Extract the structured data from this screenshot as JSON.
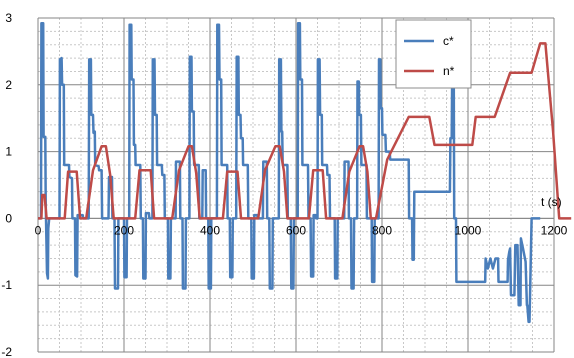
{
  "chart_data": {
    "type": "line",
    "xlabel": "t (s)",
    "ylabel": "",
    "xlim": [
      0,
      1200
    ],
    "ylim": [
      -2,
      3
    ],
    "x_ticks": [
      "0",
      "200",
      "400",
      "600",
      "800",
      "1000",
      "1200"
    ],
    "y_ticks": [
      "3",
      "2",
      "1",
      "0",
      "-1",
      "-2"
    ],
    "grid": true,
    "legend_position": "top-right",
    "series": [
      {
        "name": "c*",
        "color": "#4a7ebb",
        "points": [
          [
            0,
            0
          ],
          [
            7,
            0
          ],
          [
            8,
            2.92
          ],
          [
            12,
            2.92
          ],
          [
            13,
            1.22
          ],
          [
            17,
            1.22
          ],
          [
            18,
            0.25
          ],
          [
            21,
            -0.82
          ],
          [
            23,
            -0.9
          ],
          [
            24,
            -0.15
          ],
          [
            26,
            0
          ],
          [
            44,
            0
          ],
          [
            50,
            0
          ],
          [
            51,
            2.38
          ],
          [
            55,
            2.4
          ],
          [
            56,
            2.0
          ],
          [
            60,
            2.0
          ],
          [
            61,
            0.8
          ],
          [
            72,
            0.8
          ],
          [
            73,
            0.62
          ],
          [
            79,
            0.6
          ],
          [
            80,
            0
          ],
          [
            86,
            0
          ],
          [
            87,
            -0.85
          ],
          [
            91,
            -0.87
          ],
          [
            92,
            0.05
          ],
          [
            104,
            0.05
          ],
          [
            105,
            0
          ],
          [
            118,
            0
          ],
          [
            119,
            2.38
          ],
          [
            123,
            2.38
          ],
          [
            124,
            1.55
          ],
          [
            128,
            1.55
          ],
          [
            129,
            1.28
          ],
          [
            132,
            1.3
          ],
          [
            133,
            0.8
          ],
          [
            141,
            0.78
          ],
          [
            142,
            0.72
          ],
          [
            148,
            0.72
          ],
          [
            149,
            0
          ],
          [
            164,
            0
          ],
          [
            165,
            0.62
          ],
          [
            172,
            0.62
          ],
          [
            173,
            0
          ],
          [
            178,
            0
          ],
          [
            179,
            -1.05
          ],
          [
            186,
            -1.05
          ],
          [
            187,
            0
          ],
          [
            200,
            0
          ],
          [
            201,
            -0.88
          ],
          [
            206,
            -0.88
          ],
          [
            207,
            0
          ],
          [
            212,
            0
          ],
          [
            213,
            2.9
          ],
          [
            217,
            2.9
          ],
          [
            218,
            2.08
          ],
          [
            222,
            2.08
          ],
          [
            223,
            1.1
          ],
          [
            226,
            1.1
          ],
          [
            227,
            0.8
          ],
          [
            238,
            0.8
          ],
          [
            239,
            0
          ],
          [
            244,
            0
          ],
          [
            245,
            -0.9
          ],
          [
            250,
            -0.9
          ],
          [
            251,
            0.08
          ],
          [
            258,
            0.08
          ],
          [
            259,
            0
          ],
          [
            266,
            0
          ],
          [
            267,
            2.38
          ],
          [
            271,
            2.38
          ],
          [
            272,
            1.55
          ],
          [
            276,
            1.55
          ],
          [
            277,
            0.8
          ],
          [
            288,
            0.8
          ],
          [
            289,
            0.65
          ],
          [
            294,
            0.65
          ],
          [
            295,
            0
          ],
          [
            302,
            0
          ],
          [
            303,
            -0.9
          ],
          [
            308,
            -0.9
          ],
          [
            309,
            0
          ],
          [
            320,
            0
          ],
          [
            321,
            0.85
          ],
          [
            330,
            0.85
          ],
          [
            331,
            0
          ],
          [
            336,
            0
          ],
          [
            337,
            -1.05
          ],
          [
            343,
            -1.05
          ],
          [
            344,
            0
          ],
          [
            352,
            0
          ],
          [
            353,
            2.42
          ],
          [
            357,
            2.42
          ],
          [
            358,
            1.6
          ],
          [
            362,
            1.6
          ],
          [
            363,
            0.8
          ],
          [
            374,
            0.8
          ],
          [
            375,
            0
          ],
          [
            382,
            0
          ],
          [
            383,
            0.72
          ],
          [
            390,
            0.72
          ],
          [
            391,
            0
          ],
          [
            396,
            0
          ],
          [
            397,
            -1.05
          ],
          [
            402,
            -1.05
          ],
          [
            403,
            0
          ],
          [
            416,
            0
          ],
          [
            417,
            2.9
          ],
          [
            421,
            2.9
          ],
          [
            422,
            2.08
          ],
          [
            426,
            2.08
          ],
          [
            427,
            0.8
          ],
          [
            440,
            0.8
          ],
          [
            441,
            0
          ],
          [
            446,
            0
          ],
          [
            447,
            -0.88
          ],
          [
            452,
            -0.88
          ],
          [
            453,
            0
          ],
          [
            461,
            0
          ],
          [
            462,
            2.42
          ],
          [
            466,
            2.42
          ],
          [
            467,
            1.55
          ],
          [
            471,
            1.55
          ],
          [
            472,
            1.2
          ],
          [
            476,
            1.2
          ],
          [
            477,
            0.8
          ],
          [
            488,
            0.8
          ],
          [
            489,
            0
          ],
          [
            496,
            0
          ],
          [
            497,
            -0.9
          ],
          [
            502,
            -0.9
          ],
          [
            503,
            0.05
          ],
          [
            510,
            0.05
          ],
          [
            511,
            0
          ],
          [
            523,
            0
          ],
          [
            524,
            0.85
          ],
          [
            532,
            0.85
          ],
          [
            533,
            0
          ],
          [
            538,
            0
          ],
          [
            539,
            -1.05
          ],
          [
            545,
            -1.05
          ],
          [
            546,
            0
          ],
          [
            560,
            0
          ],
          [
            561,
            2.38
          ],
          [
            565,
            2.38
          ],
          [
            566,
            1.3
          ],
          [
            568,
            1.3
          ],
          [
            569,
            0.8
          ],
          [
            580,
            0.8
          ],
          [
            581,
            0
          ],
          [
            588,
            0
          ],
          [
            589,
            -1.05
          ],
          [
            594,
            -1.05
          ],
          [
            595,
            0
          ],
          [
            604,
            0
          ],
          [
            605,
            2.92
          ],
          [
            609,
            2.92
          ],
          [
            610,
            2.08
          ],
          [
            614,
            2.08
          ],
          [
            615,
            0.8
          ],
          [
            628,
            0.8
          ],
          [
            629,
            0
          ],
          [
            634,
            0
          ],
          [
            635,
            -0.87
          ],
          [
            640,
            -0.87
          ],
          [
            641,
            0.05
          ],
          [
            646,
            0.05
          ],
          [
            647,
            0
          ],
          [
            650,
            0
          ],
          [
            651,
            2.38
          ],
          [
            655,
            2.38
          ],
          [
            656,
            1.55
          ],
          [
            660,
            1.55
          ],
          [
            661,
            0.8
          ],
          [
            672,
            0.8
          ],
          [
            673,
            0.65
          ],
          [
            678,
            0.65
          ],
          [
            679,
            0
          ],
          [
            690,
            0
          ],
          [
            691,
            -0.9
          ],
          [
            696,
            -0.9
          ],
          [
            697,
            0
          ],
          [
            712,
            0
          ],
          [
            713,
            0.85
          ],
          [
            722,
            0.85
          ],
          [
            723,
            0
          ],
          [
            728,
            0
          ],
          [
            729,
            -1.05
          ],
          [
            734,
            -1.05
          ],
          [
            735,
            0
          ],
          [
            742,
            0
          ],
          [
            743,
            2.05
          ],
          [
            746,
            2.05
          ],
          [
            747,
            1.55
          ],
          [
            751,
            1.55
          ],
          [
            752,
            0.8
          ],
          [
            764,
            0.8
          ],
          [
            765,
            0
          ],
          [
            776,
            0
          ],
          [
            777,
            -0.95
          ],
          [
            782,
            -0.95
          ],
          [
            783,
            0
          ],
          [
            792,
            0
          ],
          [
            793,
            2.38
          ],
          [
            796,
            2.38
          ],
          [
            797,
            1.65
          ],
          [
            800,
            1.65
          ],
          [
            801,
            1.25
          ],
          [
            808,
            1.25
          ],
          [
            809,
            1.0
          ],
          [
            818,
            1.0
          ],
          [
            819,
            0.88
          ],
          [
            862,
            0.88
          ],
          [
            863,
            0
          ],
          [
            870,
            0
          ],
          [
            871,
            -0.62
          ],
          [
            874,
            -0.62
          ],
          [
            875,
            0.4
          ],
          [
            958,
            0.4
          ],
          [
            959,
            1.2
          ],
          [
            962,
            1.2
          ],
          [
            963,
            2.0
          ],
          [
            967,
            2.0
          ],
          [
            968,
            0
          ],
          [
            972,
            0
          ],
          [
            973,
            -0.95
          ],
          [
            1040,
            -0.95
          ],
          [
            1041,
            -0.6
          ],
          [
            1046,
            -0.75
          ],
          [
            1052,
            -0.6
          ],
          [
            1058,
            -0.75
          ],
          [
            1064,
            -0.6
          ],
          [
            1070,
            -0.6
          ],
          [
            1071,
            -0.95
          ],
          [
            1092,
            -0.95
          ],
          [
            1093,
            -0.62
          ],
          [
            1096,
            -0.5
          ],
          [
            1098,
            -0.45
          ],
          [
            1100,
            -1.15
          ],
          [
            1108,
            -1.15
          ],
          [
            1110,
            -0.4
          ],
          [
            1115,
            -0.4
          ],
          [
            1118,
            -1.3
          ],
          [
            1122,
            -1.3
          ],
          [
            1123,
            -0.3
          ],
          [
            1128,
            -0.45
          ],
          [
            1134,
            -0.65
          ],
          [
            1137,
            -1.3
          ],
          [
            1138,
            -1.3
          ],
          [
            1141,
            -1.55
          ],
          [
            1143,
            -1.55
          ],
          [
            1148,
            0
          ],
          [
            1168,
            0
          ]
        ]
      },
      {
        "name": "n*",
        "color": "#be4b48",
        "points": [
          [
            0,
            0
          ],
          [
            8,
            0
          ],
          [
            10,
            0.35
          ],
          [
            15,
            0.35
          ],
          [
            20,
            0
          ],
          [
            62,
            0
          ],
          [
            70,
            0.7
          ],
          [
            90,
            0.7
          ],
          [
            98,
            0
          ],
          [
            112,
            0
          ],
          [
            128,
            0.72
          ],
          [
            148,
            1.08
          ],
          [
            158,
            1.08
          ],
          [
            168,
            0.65
          ],
          [
            176,
            0
          ],
          [
            226,
            0
          ],
          [
            236,
            0.72
          ],
          [
            262,
            0.72
          ],
          [
            270,
            0
          ],
          [
            312,
            0
          ],
          [
            328,
            0.72
          ],
          [
            350,
            1.08
          ],
          [
            358,
            1.08
          ],
          [
            368,
            0.68
          ],
          [
            376,
            0
          ],
          [
            430,
            0
          ],
          [
            440,
            0.7
          ],
          [
            464,
            0.7
          ],
          [
            472,
            0
          ],
          [
            512,
            0
          ],
          [
            528,
            0.72
          ],
          [
            552,
            1.08
          ],
          [
            562,
            1.08
          ],
          [
            572,
            0.7
          ],
          [
            580,
            0
          ],
          [
            630,
            0
          ],
          [
            640,
            0.72
          ],
          [
            662,
            0.72
          ],
          [
            670,
            0
          ],
          [
            708,
            0
          ],
          [
            724,
            0.7
          ],
          [
            748,
            1.08
          ],
          [
            756,
            1.08
          ],
          [
            766,
            0.7
          ],
          [
            774,
            0
          ],
          [
            786,
            0
          ],
          [
            812,
            0.88
          ],
          [
            862,
            1.52
          ],
          [
            910,
            1.52
          ],
          [
            922,
            1.1
          ],
          [
            1010,
            1.1
          ],
          [
            1018,
            1.52
          ],
          [
            1062,
            1.52
          ],
          [
            1080,
            1.85
          ],
          [
            1098,
            2.18
          ],
          [
            1148,
            2.18
          ],
          [
            1168,
            2.62
          ],
          [
            1180,
            2.62
          ],
          [
            1198,
            1.3
          ],
          [
            1212,
            0
          ],
          [
            1240,
            0
          ]
        ]
      }
    ]
  }
}
